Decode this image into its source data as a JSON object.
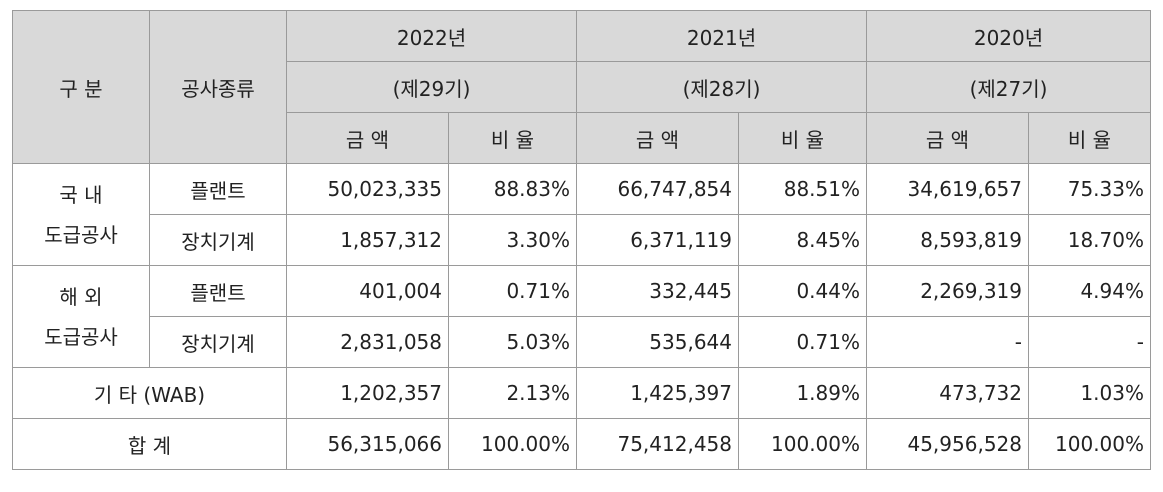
{
  "header": {
    "category": "구 분",
    "type": "공사종류",
    "years": [
      {
        "year": "2022년",
        "period": "(제29기)"
      },
      {
        "year": "2021년",
        "period": "(제28기)"
      },
      {
        "year": "2020년",
        "period": "(제27기)"
      }
    ],
    "amount": "금 액",
    "ratio": "비 율"
  },
  "groups": {
    "domestic": {
      "line1": "국 내",
      "line2": "도급공사"
    },
    "overseas": {
      "line1": "해 외",
      "line2": "도급공사"
    }
  },
  "rows": {
    "dom_plant": {
      "type": "플랜트",
      "v": [
        "50,023,335",
        "88.83%",
        "66,747,854",
        "88.51%",
        "34,619,657",
        "75.33%"
      ]
    },
    "dom_equip": {
      "type": "장치기계",
      "v": [
        "1,857,312",
        "3.30%",
        "6,371,119",
        "8.45%",
        "8,593,819",
        "18.70%"
      ]
    },
    "ovs_plant": {
      "type": "플랜트",
      "v": [
        "401,004",
        "0.71%",
        "332,445",
        "0.44%",
        "2,269,319",
        "4.94%"
      ]
    },
    "ovs_equip": {
      "type": "장치기계",
      "v": [
        "2,831,058",
        "5.03%",
        "535,644",
        "0.71%",
        "-",
        "-"
      ]
    },
    "other": {
      "label": "기 타 (WAB)",
      "v": [
        "1,202,357",
        "2.13%",
        "1,425,397",
        "1.89%",
        "473,732",
        "1.03%"
      ]
    },
    "total": {
      "label": "합 계",
      "v": [
        "56,315,066",
        "100.00%",
        "75,412,458",
        "100.00%",
        "45,956,528",
        "100.00%"
      ]
    }
  }
}
